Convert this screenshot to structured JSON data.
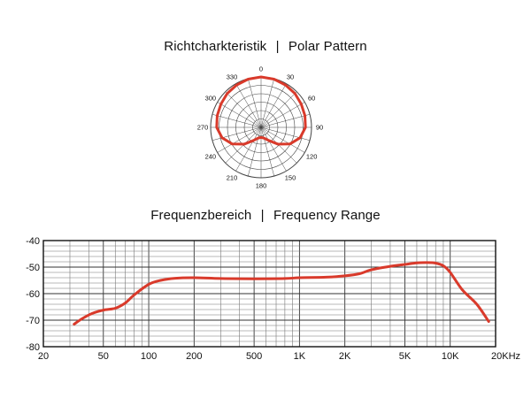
{
  "polar": {
    "title_de": "Richtcharkteristik",
    "separator": "|",
    "title_en": "Polar Pattern"
  },
  "frequency": {
    "title_de": "Frequenzbereich",
    "separator": "|",
    "title_en": "Frequency Range"
  },
  "colors": {
    "curve": "#d93a2b",
    "grid": "#555555",
    "frame": "#111111"
  },
  "chart_data": [
    {
      "type": "polar",
      "angle_labels": [
        "0",
        "30",
        "60",
        "90",
        "120",
        "150",
        "180",
        "210",
        "240",
        "270",
        "300",
        "330"
      ],
      "angles_deg": [
        0,
        30,
        60,
        90,
        120,
        150,
        180,
        210,
        240,
        270,
        300,
        330
      ],
      "ring_count": 6,
      "radial_lines_every_deg": 15,
      "series": [
        {
          "values_theta_deg": [
            0,
            15,
            30,
            45,
            60,
            75,
            90,
            105,
            120,
            135,
            150,
            165,
            180,
            195,
            210,
            225,
            240,
            255,
            270,
            285,
            300,
            315,
            330,
            345
          ],
          "values_r": [
            1.0,
            0.99,
            0.97,
            0.95,
            0.92,
            0.9,
            0.88,
            0.8,
            0.66,
            0.47,
            0.3,
            0.22,
            0.2,
            0.22,
            0.3,
            0.47,
            0.66,
            0.8,
            0.88,
            0.9,
            0.92,
            0.95,
            0.97,
            0.99
          ]
        }
      ]
    },
    {
      "type": "line",
      "x_scale": "log",
      "xlim": [
        20,
        20000
      ],
      "ylim": [
        -80,
        -40
      ],
      "x_tick_values": [
        20,
        50,
        100,
        200,
        500,
        1000,
        2000,
        5000,
        10000,
        20000
      ],
      "x_tick_labels": [
        "20",
        "50",
        "100",
        "200",
        "500",
        "1K",
        "2K",
        "5K",
        "10K",
        "20KHz"
      ],
      "y_tick_values": [
        -40,
        -50,
        -60,
        -70,
        -80
      ],
      "y_tick_labels": [
        "-40",
        "-50",
        "-60",
        "-70",
        "-80"
      ],
      "grid": true,
      "series": [
        {
          "x": [
            32,
            36,
            42,
            50,
            60,
            70,
            80,
            100,
            120,
            150,
            200,
            300,
            500,
            800,
            1000,
            1500,
            2000,
            2500,
            3000,
            4000,
            5000,
            6000,
            7000,
            8000,
            9000,
            10000,
            12000,
            15000,
            18000
          ],
          "y": [
            -71.5,
            -69.5,
            -67.5,
            -66.2,
            -65.5,
            -63.5,
            -60.5,
            -56.5,
            -55,
            -54.2,
            -54,
            -54.3,
            -54.4,
            -54.3,
            -54,
            -53.8,
            -53.3,
            -52.5,
            -51,
            -49.7,
            -49,
            -48.4,
            -48.3,
            -48.5,
            -49.5,
            -52,
            -58.5,
            -64,
            -70.5
          ]
        }
      ]
    }
  ]
}
